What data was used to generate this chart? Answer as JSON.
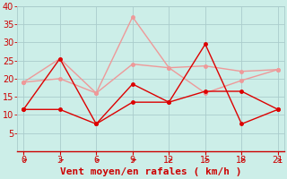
{
  "xlabel": "Vent moyen/en rafales ( km/h )",
  "background_color": "#cceee8",
  "grid_color": "#aacccc",
  "x_ticks": [
    0,
    3,
    6,
    9,
    12,
    15,
    18,
    21
  ],
  "ylim": [
    0,
    40
  ],
  "xlim": [
    -0.5,
    21.5
  ],
  "yticks": [
    5,
    10,
    15,
    20,
    25,
    30,
    35,
    40
  ],
  "line_dark1": {
    "x": [
      0,
      3,
      6,
      9,
      12,
      15,
      18,
      21
    ],
    "y": [
      11.5,
      11.5,
      7.5,
      13.5,
      13.5,
      16.5,
      16.5,
      11.5
    ],
    "color": "#dd0000",
    "linewidth": 1.0,
    "markersize": 2.5
  },
  "line_dark2": {
    "x": [
      0,
      3,
      6,
      9,
      12,
      15,
      18,
      21
    ],
    "y": [
      11.5,
      25.5,
      7.5,
      18.5,
      13.5,
      29.5,
      7.5,
      11.5
    ],
    "color": "#dd0000",
    "linewidth": 1.0,
    "markersize": 2.5
  },
  "line_light1": {
    "x": [
      0,
      3,
      6,
      9,
      12,
      15,
      18,
      21
    ],
    "y": [
      19.0,
      20.0,
      16.0,
      24.0,
      23.0,
      23.5,
      22.0,
      22.5
    ],
    "color": "#ee9999",
    "linewidth": 1.0,
    "markersize": 2.5
  },
  "line_light2": {
    "x": [
      0,
      3,
      6,
      9,
      12,
      15,
      18,
      21
    ],
    "y": [
      19.0,
      25.5,
      16.0,
      37.0,
      23.0,
      16.0,
      19.5,
      22.5
    ],
    "color": "#ee9999",
    "linewidth": 1.0,
    "markersize": 2.5
  },
  "tick_color": "#cc0000",
  "label_color": "#cc0000",
  "tick_fontsize": 7,
  "label_fontsize": 8
}
